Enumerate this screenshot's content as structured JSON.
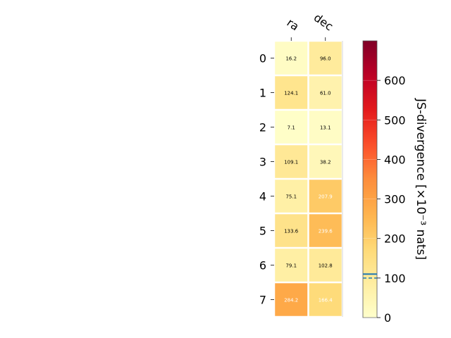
{
  "chart_data": {
    "type": "heatmap",
    "columns": [
      "ra",
      "dec"
    ],
    "rows": [
      "0",
      "1",
      "2",
      "3",
      "4",
      "5",
      "6",
      "7"
    ],
    "values": [
      [
        16.2,
        96.0
      ],
      [
        124.1,
        61.0
      ],
      [
        7.1,
        13.1
      ],
      [
        109.1,
        38.2
      ],
      [
        75.1,
        207.9
      ],
      [
        133.6,
        239.6
      ],
      [
        79.1,
        102.8
      ],
      [
        284.2,
        166.4
      ]
    ],
    "value_labels": [
      [
        "16.2",
        "96.0"
      ],
      [
        "124.1",
        "61.0"
      ],
      [
        "7.1",
        "13.1"
      ],
      [
        "109.1",
        "38.2"
      ],
      [
        "75.1",
        "207.9"
      ],
      [
        "133.6",
        "239.6"
      ],
      [
        "79.1",
        "102.8"
      ],
      [
        "284.2",
        "166.4"
      ]
    ],
    "colorbar": {
      "label": "JS-divergence [×10⁻³ nats]",
      "range": [
        0,
        700
      ],
      "ticks": [
        "0",
        "100",
        "200",
        "300",
        "400",
        "500",
        "600"
      ],
      "tick_values": [
        0,
        100,
        200,
        300,
        400,
        500,
        600
      ],
      "colormap": "YlOrRd",
      "reference_solid": 110,
      "reference_dashed": 100,
      "reference_color": "#1f77b4"
    },
    "grid": false
  }
}
